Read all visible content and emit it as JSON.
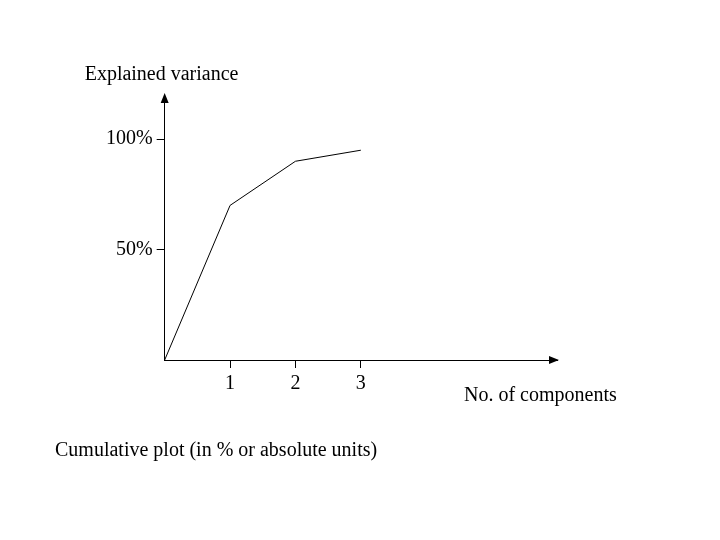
{
  "chart_data": {
    "type": "line",
    "subtitle": "Cumulative plot (in % or absolute units)",
    "x_label": "No. of components",
    "y_label": "Explained variance",
    "x": [
      0,
      1,
      2,
      3
    ],
    "values": [
      0,
      70,
      90,
      95
    ],
    "color": "#000000",
    "xlim": [
      0,
      6
    ],
    "ylim": [
      0,
      120
    ],
    "xticks": [
      1,
      2,
      3
    ],
    "yticks": [
      {
        "value": 50,
        "label": "50%"
      },
      {
        "value": 100,
        "label": "100%"
      }
    ],
    "grid": false,
    "marker": "none"
  }
}
